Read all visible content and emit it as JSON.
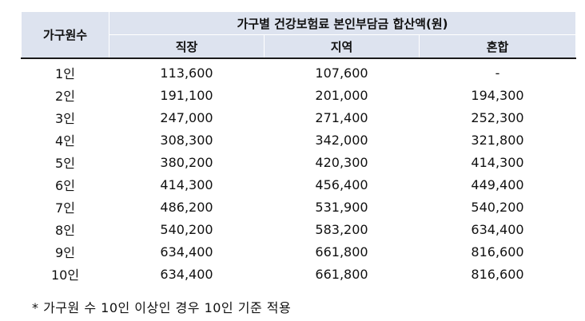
{
  "table": {
    "household_header": "가구원수",
    "main_header": "가구별 건강보험료 본인부담금 합산액(원)",
    "columns": [
      "직장",
      "지역",
      "혼합"
    ],
    "rows": [
      {
        "household": "1인",
        "workplace": "113,600",
        "regional": "107,600",
        "mixed": "-"
      },
      {
        "household": "2인",
        "workplace": "191,100",
        "regional": "201,000",
        "mixed": "194,300"
      },
      {
        "household": "3인",
        "workplace": "247,000",
        "regional": "271,400",
        "mixed": "252,300"
      },
      {
        "household": "4인",
        "workplace": "308,300",
        "regional": "342,000",
        "mixed": "321,800"
      },
      {
        "household": "5인",
        "workplace": "380,200",
        "regional": "420,300",
        "mixed": "414,300"
      },
      {
        "household": "6인",
        "workplace": "414,300",
        "regional": "456,400",
        "mixed": "449,400"
      },
      {
        "household": "7인",
        "workplace": "486,200",
        "regional": "531,900",
        "mixed": "540,200"
      },
      {
        "household": "8인",
        "workplace": "540,200",
        "regional": "583,200",
        "mixed": "634,400"
      },
      {
        "household": "9인",
        "workplace": "634,400",
        "regional": "661,800",
        "mixed": "816,600"
      },
      {
        "household": "10인",
        "workplace": "634,400",
        "regional": "661,800",
        "mixed": "816,600"
      }
    ]
  },
  "footnote": "* 가구원 수 10인 이상인 경우 10인 기준 적용"
}
